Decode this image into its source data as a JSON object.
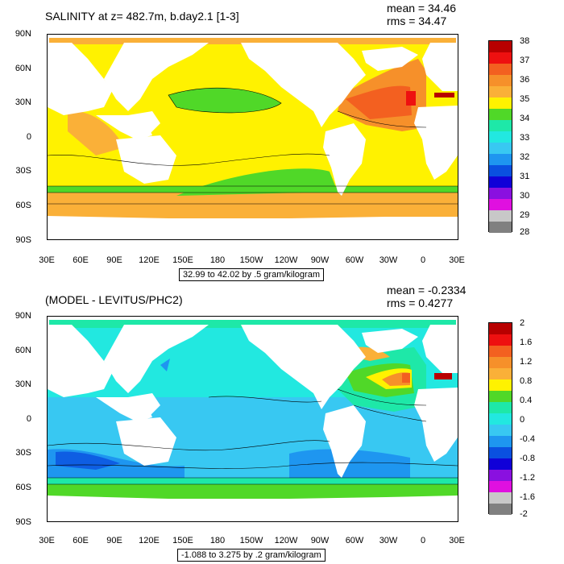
{
  "panels": [
    {
      "title": "SALINITY at z= 482.7m, b.day2.1 [1-3]",
      "stats": {
        "mean": "mean = 34.46",
        "rms": "rms = 34.47"
      },
      "range_text": "32.99 to 42.02 by .5 gram/kilogram",
      "colorbar": {
        "labels": [
          "38",
          "37",
          "36",
          "35",
          "34",
          "33",
          "32",
          "31",
          "30",
          "29",
          "28"
        ],
        "colors": [
          "#b80000",
          "#ee1010",
          "#f36020",
          "#f6902a",
          "#fab038",
          "#fff200",
          "#50d828",
          "#1ee8a8",
          "#22e8e0",
          "#38c8f2",
          "#1e96f0",
          "#0a50e0",
          "#1000d8",
          "#8a10e0",
          "#e010e0",
          "#c8c8c8",
          "#808080"
        ]
      }
    },
    {
      "title": "(MODEL - LEVITUS/PHC2)",
      "stats": {
        "mean": "mean = -0.2334",
        "rms": "rms = 0.4277"
      },
      "range_text": "-1.088 to 3.275 by .2 gram/kilogram",
      "colorbar": {
        "labels": [
          "2",
          "1.6",
          "1.2",
          "0.8",
          "0.4",
          "0",
          "-0.4",
          "-0.8",
          "-1.2",
          "-1.6",
          "-2"
        ],
        "colors": [
          "#b80000",
          "#ee1010",
          "#f36020",
          "#f6902a",
          "#fab038",
          "#fff200",
          "#50d828",
          "#1ee8a8",
          "#22e8e0",
          "#38c8f2",
          "#1e96f0",
          "#0a50e0",
          "#1000d8",
          "#8a10e0",
          "#e010e0",
          "#c8c8c8",
          "#808080"
        ]
      }
    }
  ],
  "axes": {
    "lat_labels": [
      "90N",
      "60N",
      "30N",
      "0",
      "30S",
      "60S",
      "90S"
    ],
    "lon_labels": [
      "30E",
      "60E",
      "90E",
      "120E",
      "150E",
      "180",
      "150W",
      "120W",
      "90W",
      "60W",
      "30W",
      "0",
      "30E"
    ]
  }
}
